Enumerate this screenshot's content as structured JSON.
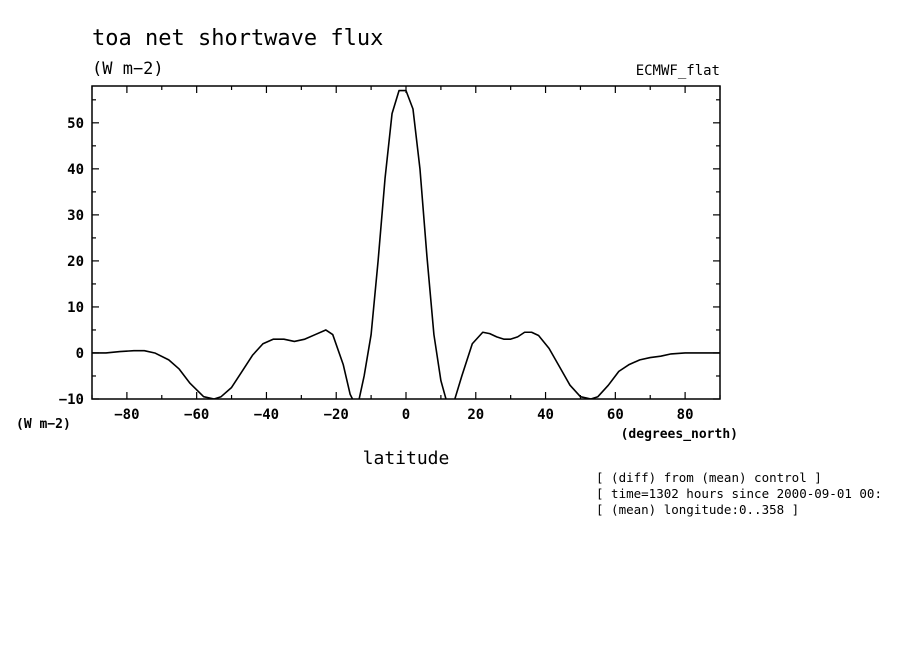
{
  "chart_data": {
    "type": "line",
    "title": "toa net shortwave flux",
    "units_label": "(W m−2)",
    "y_units_label": "(W m−2)",
    "dataset_label": "ECMWF_flat",
    "xlabel": "latitude",
    "x_units_label": "(degrees_north)",
    "xlim": [
      -90,
      90
    ],
    "ylim": [
      -10,
      58
    ],
    "x_ticks": [
      -80,
      -60,
      -40,
      -20,
      0,
      20,
      40,
      60,
      80
    ],
    "x_tick_labels": [
      "−80",
      "−60",
      "−40",
      "−20",
      "0",
      "20",
      "40",
      "60",
      "80"
    ],
    "y_ticks": [
      -10,
      0,
      10,
      20,
      30,
      40,
      50
    ],
    "y_tick_labels": [
      "−10",
      "0",
      "10",
      "20",
      "30",
      "40",
      "50"
    ],
    "grid": false,
    "line_color": "#000000",
    "series": [
      {
        "x": [
          -90,
          -86,
          -82,
          -78,
          -75,
          -72,
          -68,
          -65,
          -62,
          -58,
          -55,
          -53,
          -50,
          -47,
          -44,
          -41,
          -38,
          -35,
          -32,
          -29,
          -26,
          -23,
          -21,
          -18,
          -16,
          -14,
          -12,
          -10,
          -8,
          -6,
          -4,
          -2,
          0,
          2,
          4,
          6,
          8,
          10,
          12,
          14,
          16,
          19,
          22,
          24,
          26,
          28,
          30,
          32,
          34,
          36,
          38,
          41,
          44,
          47,
          50,
          53,
          55,
          58,
          61,
          64,
          67,
          70,
          73,
          76,
          80,
          85,
          90
        ],
        "y": [
          0,
          0,
          0.3,
          0.5,
          0.5,
          0,
          -1.5,
          -3.5,
          -6.5,
          -9.5,
          -10,
          -9.5,
          -7.5,
          -4,
          -0.5,
          2,
          3,
          3,
          2.5,
          3,
          4,
          5,
          4,
          -2.5,
          -9,
          -12,
          -5,
          4,
          20,
          38,
          52,
          57,
          57,
          53,
          40,
          21,
          4,
          -6,
          -11.5,
          -10,
          -5,
          2,
          4.5,
          4.2,
          3.5,
          3,
          3,
          3.5,
          4.5,
          4.5,
          3.8,
          1,
          -3,
          -7,
          -9.5,
          -10,
          -9.5,
          -7,
          -4,
          -2.5,
          -1.5,
          -1,
          -0.7,
          -0.2,
          0,
          0,
          0
        ]
      }
    ]
  },
  "info_lines": [
    "[ (diff) from (mean) control ]",
    "[ time=1302 hours since 2000-09-01 00:",
    "[ (mean) longitude:0..358 ]"
  ]
}
